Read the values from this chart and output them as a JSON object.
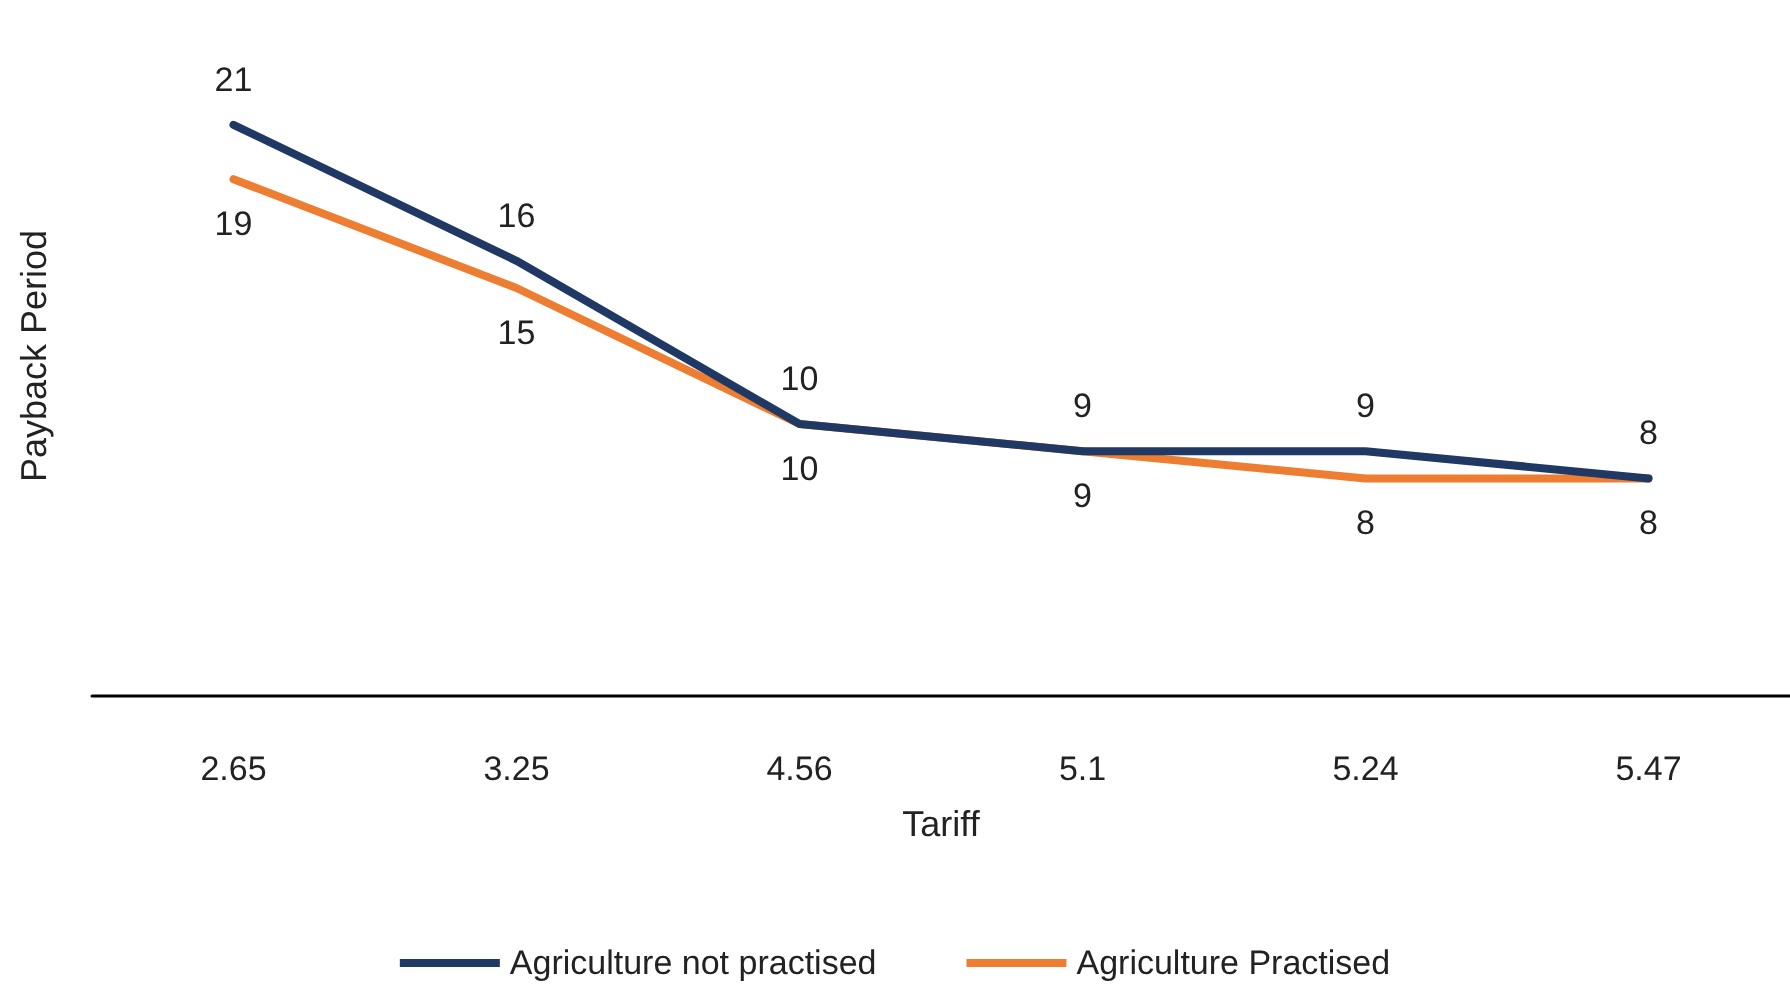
{
  "chart_data": {
    "type": "line",
    "xlabel": "Tariff",
    "ylabel": "Payback Period",
    "categories": [
      "2.65",
      "3.25",
      "4.56",
      "5.1",
      "5.24",
      "5.47"
    ],
    "series": [
      {
        "name": "Agriculture not practised",
        "color": "#203864",
        "values": [
          21,
          16,
          10,
          9,
          9,
          8
        ]
      },
      {
        "name": "Agriculture Practised",
        "color": "#ed7d31",
        "values": [
          19,
          15,
          10,
          9,
          8,
          8
        ]
      }
    ],
    "tick_labels": "x",
    "data_labels": true,
    "grid": false,
    "legend": "bottom",
    "marker": "none",
    "line_style": "solid"
  }
}
